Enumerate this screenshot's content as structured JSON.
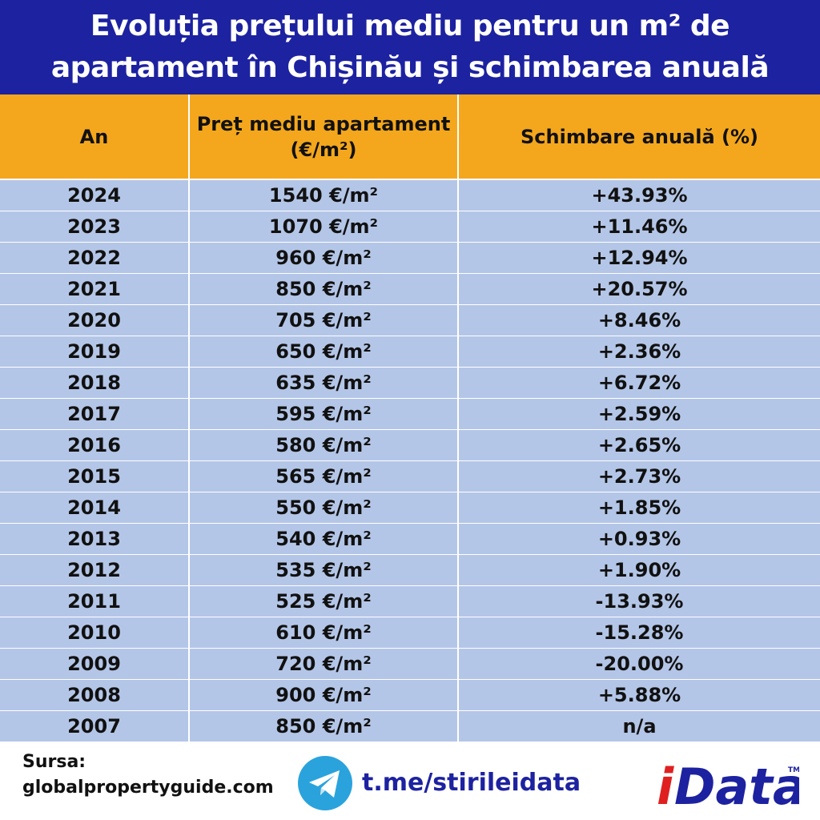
{
  "title": {
    "line1": "Evoluția prețului mediu pentru un m² de",
    "line2": "apartament în Chișinău și schimbarea anuală"
  },
  "chart_data": {
    "type": "table",
    "columns": [
      "An",
      "Preț mediu apartament (€/m²)",
      "Schimbare anuală (%)"
    ],
    "column_header_lines": [
      [
        "An"
      ],
      [
        "Preț mediu apartament",
        "(€/m²)"
      ],
      [
        "Schimbare anuală (%)"
      ]
    ],
    "rows": [
      [
        "2024",
        "1540 €/m²",
        "+43.93%"
      ],
      [
        "2023",
        "1070 €/m²",
        "+11.46%"
      ],
      [
        "2022",
        "960 €/m²",
        "+12.94%"
      ],
      [
        "2021",
        "850 €/m²",
        "+20.57%"
      ],
      [
        "2020",
        "705 €/m²",
        "+8.46%"
      ],
      [
        "2019",
        "650 €/m²",
        "+2.36%"
      ],
      [
        "2018",
        "635 €/m²",
        "+6.72%"
      ],
      [
        "2017",
        "595 €/m²",
        "+2.59%"
      ],
      [
        "2016",
        "580 €/m²",
        "+2.65%"
      ],
      [
        "2015",
        "565 €/m²",
        "+2.73%"
      ],
      [
        "2014",
        "550 €/m²",
        "+1.85%"
      ],
      [
        "2013",
        "540 €/m²",
        "+0.93%"
      ],
      [
        "2012",
        "535 €/m²",
        "+1.90%"
      ],
      [
        "2011",
        "525 €/m²",
        "-13.93%"
      ],
      [
        "2010",
        "610 €/m²",
        "-15.28%"
      ],
      [
        "2009",
        "720 €/m²",
        "-20.00%"
      ],
      [
        "2008",
        "900 €/m²",
        "+5.88%"
      ],
      [
        "2007",
        "850 €/m²",
        "n/a"
      ]
    ]
  },
  "footer": {
    "source_label": "Sursa:",
    "source_site": "globalpropertyguide.com",
    "telegram_link": "t.me/stirileidata",
    "brand": "iData",
    "brand_mark": "TM"
  },
  "colors": {
    "title_bg": "#1d22a0",
    "header_bg": "#f4a71d",
    "row_bg": "#b4c6e7",
    "telegram": "#2aa3dd",
    "brand_red": "#e02020",
    "brand_blue": "#1d22a0"
  },
  "icons": {
    "telegram": "telegram-icon",
    "brand": "idata-logo"
  }
}
